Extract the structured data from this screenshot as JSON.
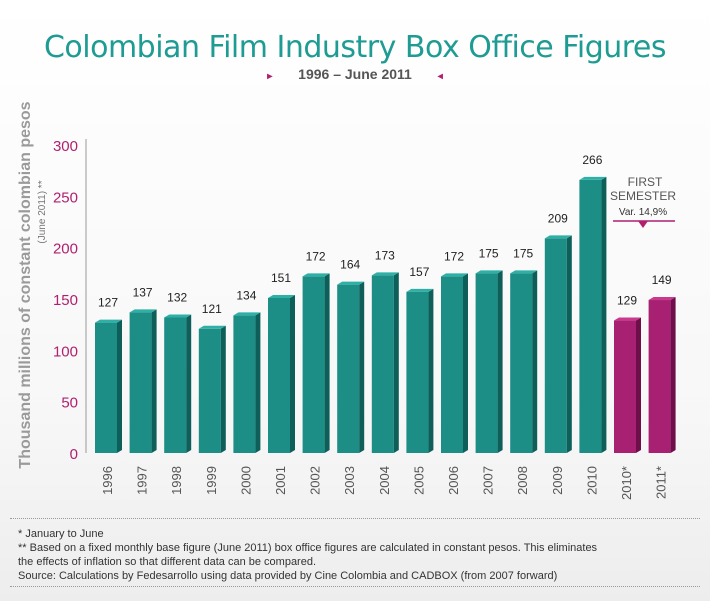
{
  "header": {
    "title": "Colombian Film Industry Box Office Figures",
    "subtitle": "1996 – June 2011",
    "left_marker": "▸",
    "right_marker": "◂"
  },
  "colors": {
    "teal": "#1c8e86",
    "teal_dark": "#0e5f59",
    "teal_top": "#2fb0a6",
    "magenta": "#a82072",
    "magenta_dark": "#6f0f4a",
    "magenta_top": "#c93a8f",
    "axis_magenta": "#b0206f",
    "title": "#1e9c93"
  },
  "chart_data": {
    "type": "bar",
    "title": "Colombian Film Industry Box Office Figures",
    "subtitle": "1996 – June 2011",
    "ylabel": "Thousand millions of constant colombian pesos",
    "ylabel_sub": "(June 2011) **",
    "ylim": [
      0,
      300
    ],
    "yticks": [
      "0",
      "50",
      "100",
      "150",
      "200",
      "250",
      "300"
    ],
    "categories": [
      "1996",
      "1997",
      "1998",
      "1999",
      "2000",
      "2001",
      "2002",
      "2003",
      "2004",
      "2005",
      "2006",
      "2007",
      "2008",
      "2009",
      "2010",
      "2010*",
      "2011*"
    ],
    "values": [
      127,
      137,
      132,
      121,
      134,
      151,
      172,
      164,
      173,
      157,
      172,
      175,
      175,
      209,
      266,
      129,
      149
    ],
    "highlight_from_index": 15,
    "grid": false,
    "annotation": {
      "line1": "FIRST",
      "line2": "SEMESTER",
      "line3": "Var. 14,9%"
    }
  },
  "footnotes": [
    "* January to June",
    "** Based on a fixed monthly base figure (June 2011) box office figures are calculated in constant pesos. This eliminates",
    "the effects of inflation so that different data can be compared.",
    "Source: Calculations by Fedesarrollo using data provided by Cine Colombia and CADBOX (from 2007 forward)"
  ]
}
